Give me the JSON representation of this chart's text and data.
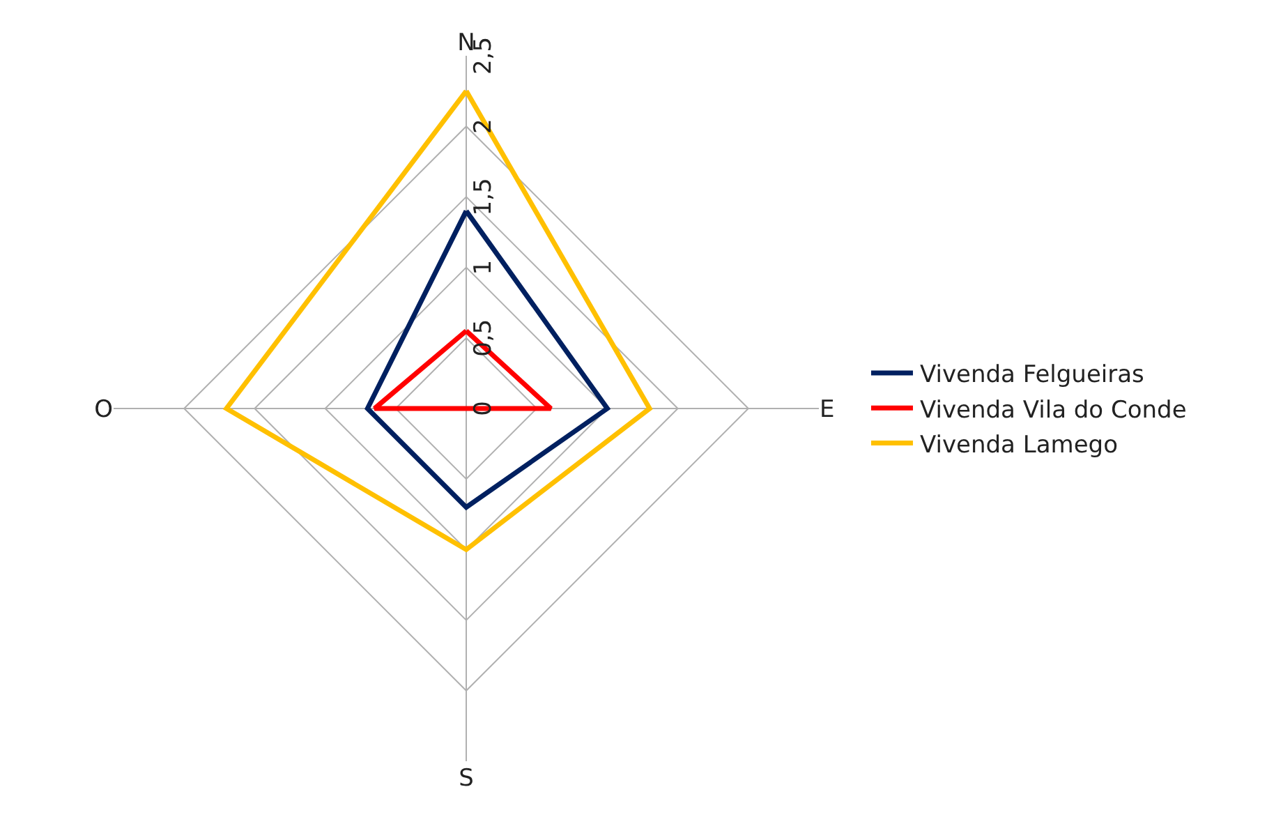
{
  "chart_data": {
    "type": "radar",
    "categories": [
      "N",
      "E",
      "S",
      "O"
    ],
    "series": [
      {
        "name": "Vivenda Felgueiras",
        "color": "#002060",
        "values": [
          1.4,
          1.0,
          0.7,
          0.7
        ]
      },
      {
        "name": "Vivenda Vila do Conde",
        "color": "#ff0000",
        "values": [
          0.55,
          0.6,
          0,
          0.65
        ]
      },
      {
        "name": "Vivenda Lamego",
        "color": "#ffc000",
        "values": [
          2.25,
          1.3,
          1.0,
          1.7
        ]
      }
    ],
    "ylim": [
      0,
      2.5
    ],
    "yticks": [
      0,
      {
        "value": 0.5,
        "label": "0,5"
      },
      1,
      {
        "value": 1.5,
        "label": "1,5"
      },
      2,
      {
        "value": 2.5,
        "label": "2,5"
      }
    ],
    "grid": true,
    "legend": "right",
    "marker": "none",
    "line_style": "solid"
  }
}
